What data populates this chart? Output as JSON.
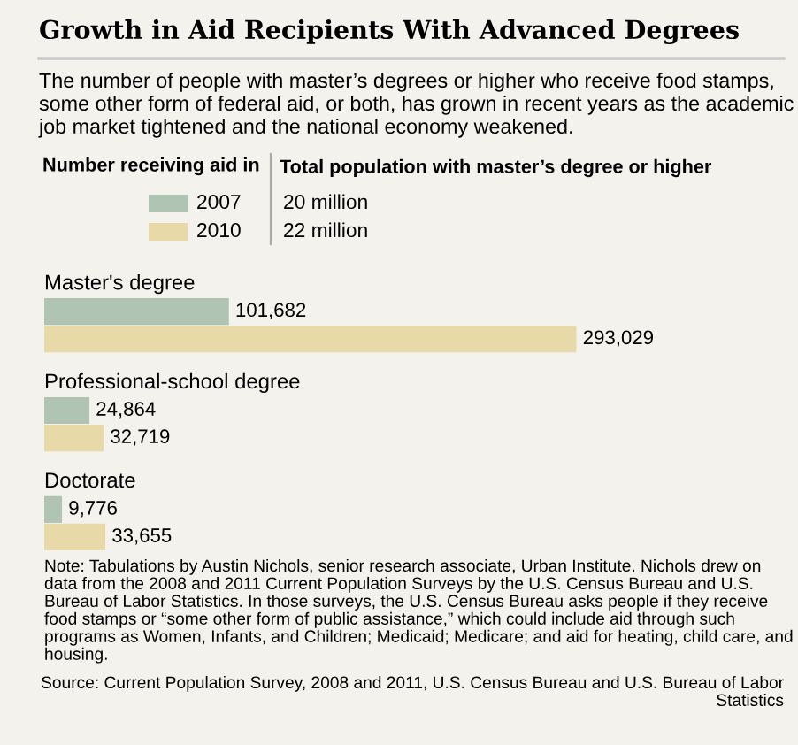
{
  "chart_data": {
    "type": "bar",
    "orientation": "horizontal",
    "title": "Growth in Aid Recipients With Advanced Degrees",
    "subtitle": "The number of people with master’s degrees or higher who receive food stamps, some other form of federal aid, or both, has grown in recent years as the academic job market tightened and the national economy weakened.",
    "legend_title": "Number receiving aid in",
    "legend": "top",
    "categories": [
      "Master's degree",
      "Professional-school degree",
      "Doctorate"
    ],
    "series": [
      {
        "name": "2007",
        "color": "#afc4b2",
        "values": [
          101682,
          24864,
          9776
        ],
        "value_labels": [
          "101,682",
          "24,864",
          "9,776"
        ]
      },
      {
        "name": "2010",
        "color": "#e8d9a8",
        "values": [
          293029,
          32719,
          33655
        ],
        "value_labels": [
          "293,029",
          "32,719",
          "33,655"
        ]
      }
    ],
    "annotations": [
      "Total population with master’s degree or higher",
      "20 million",
      "22 million",
      "Note: Tabulations by Austin Nichols, senior research associate, Urban Institute. Nichols drew on data from the 2008 and 2011 Current Population Surveys by the U.S. Census Bureau and U.S. Bureau of Labor Statistics. In those surveys, the U.S. Census Bureau asks people if they receive food stamps or “some other form of public assistance,” which could include aid through such programs as Women, Infants, and Children; Medicaid; Medicare; and aid for heating, child care, and housing.",
      "Source: Current Population Survey, 2008 and 2011, U.S. Census Bureau and U.S. Bureau of Labor Statistics"
    ]
  }
}
